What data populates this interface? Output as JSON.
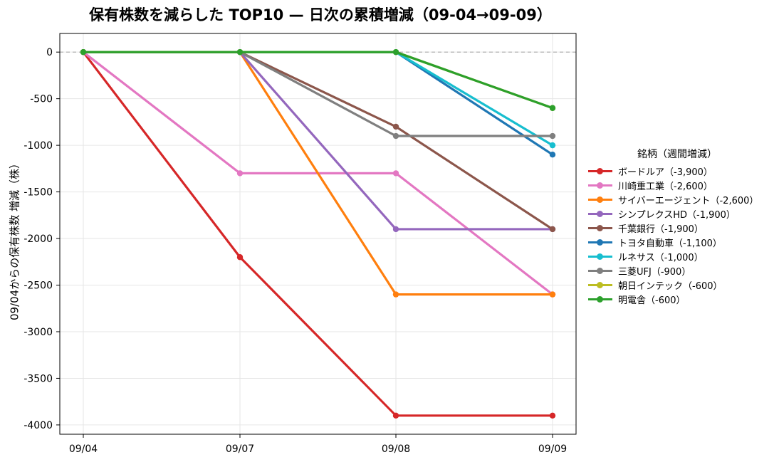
{
  "chart_data": {
    "type": "line",
    "title": "保有株数を減らした TOP10 — 日次の累積増減（09-04→09-09）",
    "xlabel": "",
    "ylabel": "09/04からの保有株数 増減（株）",
    "categories": [
      "09/04",
      "09/07",
      "09/08",
      "09/09"
    ],
    "ylim": [
      -4100,
      200
    ],
    "yticks": [
      0,
      -500,
      -1000,
      -1500,
      -2000,
      -2500,
      -3000,
      -3500,
      -4000
    ],
    "grid": true,
    "zero_reference_line": "dashed",
    "legend": {
      "title": "銘柄（週間増減）",
      "placement": "right"
    },
    "series": [
      {
        "name": "ボードルア（-3,900）",
        "color": "#d62728",
        "values": [
          0,
          -2200,
          -3900,
          -3900
        ]
      },
      {
        "name": "川崎重工業（-2,600）",
        "color": "#e377c2",
        "values": [
          0,
          -1300,
          -1300,
          -2600
        ]
      },
      {
        "name": "サイバーエージェント（-2,600）",
        "color": "#ff7f0e",
        "values": [
          0,
          0,
          -2600,
          -2600
        ]
      },
      {
        "name": "シンプレクスHD（-1,900）",
        "color": "#9467bd",
        "values": [
          0,
          0,
          -1900,
          -1900
        ]
      },
      {
        "name": "千葉銀行（-1,900）",
        "color": "#8c564b",
        "values": [
          0,
          0,
          -800,
          -1900
        ]
      },
      {
        "name": "トヨタ自動車（-1,100）",
        "color": "#1f77b4",
        "values": [
          0,
          0,
          0,
          -1100
        ]
      },
      {
        "name": "ルネサス（-1,000）",
        "color": "#17becf",
        "values": [
          0,
          0,
          0,
          -1000
        ]
      },
      {
        "name": "三菱UFJ（-900）",
        "color": "#7f7f7f",
        "values": [
          0,
          0,
          -900,
          -900
        ]
      },
      {
        "name": "朝日インテック（-600）",
        "color": "#bcbd22",
        "values": [
          0,
          0,
          0,
          -600
        ]
      },
      {
        "name": "明電舎（-600）",
        "color": "#2ca02c",
        "values": [
          0,
          0,
          0,
          -600
        ]
      }
    ]
  }
}
